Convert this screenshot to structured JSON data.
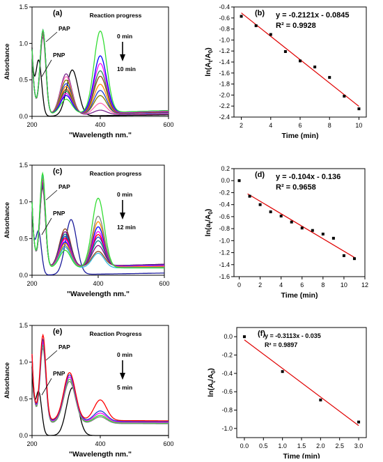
{
  "chart_data": [
    {
      "id": "a",
      "panel_label": "(a)",
      "type": "line",
      "xlabel": "\"Wavelength nm.\"",
      "ylabel": "Absorbance",
      "xlim": [
        200,
        600
      ],
      "ylim": [
        0,
        1.5
      ],
      "xticks": [
        200,
        400,
        600
      ],
      "yticks": [
        0.0,
        0.5,
        1.0,
        1.5
      ],
      "ytick_labels": [
        "0.0",
        "0.5",
        "1.0",
        "1.5"
      ],
      "annotations": {
        "pap": "PAP",
        "pnp": "PNP",
        "progress": "Reaction progress",
        "t_start": "0 min",
        "t_end": "10 min"
      },
      "series": [
        {
          "color": "#000000",
          "peaks": [
            [
              220,
              0.72
            ],
            [
              318,
              0.63
            ]
          ],
          "baseline": 0.0,
          "tail": 0.02
        },
        {
          "color": "#7b2b8f",
          "peaks": [
            [
              232,
              1.08
            ],
            [
              300,
              0.58
            ],
            [
              400,
              0.08
            ]
          ],
          "baseline": 0.02,
          "tail": 0.03
        },
        {
          "color": "#ff69b4",
          "peaks": [
            [
              232,
              1.1
            ],
            [
              300,
              0.54
            ],
            [
              400,
              0.17
            ]
          ],
          "baseline": 0.02,
          "tail": 0.04
        },
        {
          "color": "#808000",
          "peaks": [
            [
              232,
              1.12
            ],
            [
              300,
              0.49
            ],
            [
              400,
              0.27
            ]
          ],
          "baseline": 0.02,
          "tail": 0.05
        },
        {
          "color": "#1f3fd0",
          "peaks": [
            [
              232,
              1.13
            ],
            [
              300,
              0.44
            ],
            [
              400,
              0.34
            ]
          ],
          "baseline": 0.02,
          "tail": 0.05
        },
        {
          "color": "#ff8c00",
          "peaks": [
            [
              232,
              1.14
            ],
            [
              300,
              0.4
            ],
            [
              400,
              0.42
            ]
          ],
          "baseline": 0.02,
          "tail": 0.06
        },
        {
          "color": "#8b4513",
          "peaks": [
            [
              232,
              1.15
            ],
            [
              300,
              0.36
            ],
            [
              400,
              0.53
            ]
          ],
          "baseline": 0.02,
          "tail": 0.06
        },
        {
          "color": "#2e8b57",
          "peaks": [
            [
              232,
              1.16
            ],
            [
              300,
              0.33
            ],
            [
              400,
              0.6
            ]
          ],
          "baseline": 0.02,
          "tail": 0.07
        },
        {
          "color": "#ff00ff",
          "peaks": [
            [
              232,
              1.16
            ],
            [
              300,
              0.3
            ],
            [
              400,
              0.7
            ]
          ],
          "baseline": 0.02,
          "tail": 0.07
        },
        {
          "color": "#0000ff",
          "peaks": [
            [
              232,
              1.17
            ],
            [
              300,
              0.27
            ],
            [
              400,
              0.8
            ]
          ],
          "baseline": 0.02,
          "tail": 0.08
        },
        {
          "color": "#33dd33",
          "peaks": [
            [
              232,
              1.17
            ],
            [
              300,
              0.22
            ],
            [
              400,
              1.14
            ]
          ],
          "baseline": 0.02,
          "tail": 0.08
        }
      ]
    },
    {
      "id": "b",
      "panel_label": "(b)",
      "type": "scatter",
      "xlabel": "Time (min)",
      "ylabel": "ln(At/A0)",
      "ylabel_parts": {
        "pre": "ln(A",
        "s1": "t",
        "mid": "/A",
        "s2": "0",
        "post": ")"
      },
      "xlim": [
        1.5,
        10.5
      ],
      "ylim": [
        -2.4,
        -0.4
      ],
      "xticks": [
        2,
        4,
        6,
        8,
        10
      ],
      "yticks": [
        -2.4,
        -2.2,
        -2.0,
        -1.8,
        -1.6,
        -1.4,
        -1.2,
        -1.0,
        -0.8,
        -0.6,
        -0.4
      ],
      "ytick_labels": [
        "-2.4",
        "-2.2",
        "-2.0",
        "-1.8",
        "-1.6",
        "-1.4",
        "-1.2",
        "-1.0",
        "-0.8",
        "-0.6",
        "-0.4"
      ],
      "points": [
        [
          2,
          -0.57
        ],
        [
          3,
          -0.74
        ],
        [
          4,
          -0.9
        ],
        [
          5,
          -1.21
        ],
        [
          6,
          -1.38
        ],
        [
          7,
          -1.49
        ],
        [
          8,
          -1.68
        ],
        [
          9,
          -2.02
        ],
        [
          10,
          -2.25
        ]
      ],
      "fit": {
        "slope": -0.2121,
        "intercept": -0.0845,
        "x_range": [
          2,
          10
        ],
        "color": "#e00000"
      },
      "equation": "y = -0.2121x - 0.0845",
      "r2": "R² = 0.9928"
    },
    {
      "id": "c",
      "panel_label": "(c)",
      "type": "line",
      "xlabel": "\"Wavelength nm.\"",
      "ylabel": "Absorbance",
      "xlim": [
        200,
        600
      ],
      "ylim": [
        0,
        1.5
      ],
      "xticks": [
        200,
        400,
        600
      ],
      "yticks": [
        0.0,
        0.5,
        1.0,
        1.5
      ],
      "ytick_labels": [
        "0.0",
        "0.5",
        "1.0",
        "1.5"
      ],
      "annotations": {
        "pap": "PAP",
        "pnp": "PNP",
        "progress": "Reaction progress",
        "t_start": "0 min",
        "t_end": "12 min"
      },
      "series": [
        {
          "color": "#1a1a9a",
          "peaks": [
            [
              220,
              0.55
            ],
            [
              318,
              0.75
            ]
          ],
          "baseline": 0.0,
          "tail": 0.03
        },
        {
          "color": "#8b4513",
          "peaks": [
            [
              232,
              1.18
            ],
            [
              300,
              0.62
            ],
            [
              400,
              0.3
            ]
          ],
          "baseline": 0.1,
          "tail": 0.15
        },
        {
          "color": "#800080",
          "peaks": [
            [
              232,
              1.2
            ],
            [
              300,
              0.58
            ],
            [
              400,
              0.38
            ]
          ],
          "baseline": 0.1,
          "tail": 0.15
        },
        {
          "color": "#008080",
          "peaks": [
            [
              232,
              1.22
            ],
            [
              300,
              0.55
            ],
            [
              400,
              0.45
            ]
          ],
          "baseline": 0.1,
          "tail": 0.14
        },
        {
          "color": "#1f3fd0",
          "peaks": [
            [
              232,
              1.24
            ],
            [
              300,
              0.52
            ],
            [
              400,
              0.5
            ]
          ],
          "baseline": 0.1,
          "tail": 0.14
        },
        {
          "color": "#ff0000",
          "peaks": [
            [
              232,
              1.26
            ],
            [
              300,
              0.5
            ],
            [
              400,
              0.54
            ]
          ],
          "baseline": 0.1,
          "tail": 0.13
        },
        {
          "color": "#ff00ff",
          "peaks": [
            [
              232,
              1.28
            ],
            [
              300,
              0.48
            ],
            [
              400,
              0.58
            ]
          ],
          "baseline": 0.1,
          "tail": 0.13
        },
        {
          "color": "#0000ff",
          "peaks": [
            [
              232,
              1.3
            ],
            [
              300,
              0.45
            ],
            [
              400,
              0.65
            ]
          ],
          "baseline": 0.1,
          "tail": 0.12
        },
        {
          "color": "#ff8c00",
          "peaks": [
            [
              232,
              1.31
            ],
            [
              300,
              0.43
            ],
            [
              400,
              0.72
            ]
          ],
          "baseline": 0.1,
          "tail": 0.12
        },
        {
          "color": "#808080",
          "peaks": [
            [
              232,
              1.33
            ],
            [
              300,
              0.4
            ],
            [
              400,
              0.8
            ]
          ],
          "baseline": 0.1,
          "tail": 0.11
        },
        {
          "color": "#33bbdd",
          "peaks": [
            [
              232,
              1.36
            ],
            [
              300,
              0.38
            ],
            [
              400,
              0.3
            ]
          ],
          "baseline": 0.1,
          "tail": 0.1
        },
        {
          "color": "#33dd33",
          "peaks": [
            [
              232,
              1.38
            ],
            [
              300,
              0.34
            ],
            [
              400,
              1.05
            ]
          ],
          "baseline": 0.1,
          "tail": 0.1
        }
      ]
    },
    {
      "id": "d",
      "panel_label": "(d)",
      "type": "scatter",
      "xlabel": "Time (min)",
      "ylabel": "ln(at/A0)",
      "ylabel_parts": {
        "pre": "ln(a",
        "s1": "t",
        "mid": "/A",
        "s2": "0",
        "post": ")"
      },
      "xlim": [
        -0.5,
        12
      ],
      "ylim": [
        -1.6,
        0.2
      ],
      "xticks": [
        0,
        2,
        4,
        6,
        8,
        10,
        12
      ],
      "yticks": [
        -1.6,
        -1.4,
        -1.2,
        -1.0,
        -0.8,
        -0.6,
        -0.4,
        -0.2,
        0.0,
        0.2
      ],
      "ytick_labels": [
        "-1.6",
        "-1.4",
        "-1.2",
        "-1.0",
        "-0.8",
        "-0.6",
        "-0.4",
        "-0.2",
        "0.0",
        "0.2"
      ],
      "points": [
        [
          0,
          0.0
        ],
        [
          1,
          -0.26
        ],
        [
          2,
          -0.4
        ],
        [
          3,
          -0.52
        ],
        [
          4,
          -0.59
        ],
        [
          5,
          -0.69
        ],
        [
          6,
          -0.79
        ],
        [
          7,
          -0.83
        ],
        [
          8,
          -0.89
        ],
        [
          9,
          -0.96
        ],
        [
          10,
          -1.25
        ],
        [
          11,
          -1.3
        ]
      ],
      "fit": {
        "slope": -0.104,
        "intercept": -0.136,
        "x_range": [
          0.8,
          11
        ],
        "color": "#e00000"
      },
      "equation": "y = -0.104x - 0.136",
      "r2": "R² = 0.9658"
    },
    {
      "id": "e",
      "panel_label": "(e)",
      "type": "line",
      "xlabel": "\"Wavelength nm.\"",
      "ylabel": "Absorbance",
      "xlim": [
        200,
        600
      ],
      "ylim": [
        0,
        1.5
      ],
      "xticks": [
        200,
        400,
        600
      ],
      "yticks": [
        0.0,
        0.5,
        1.0,
        1.5
      ],
      "ytick_labels": [
        "0.0",
        "0.5",
        "1.0",
        "1.5"
      ],
      "annotations": {
        "pap": "PAP",
        "pnp": "PNP",
        "progress": "Reaction Progress",
        "t_start": "0 min",
        "t_end": "5 min"
      },
      "series": [
        {
          "color": "#000000",
          "peaks": [
            [
              220,
              0.55
            ],
            [
              318,
              0.65
            ]
          ],
          "baseline": 0.0,
          "tail": 0.0
        },
        {
          "color": "#808080",
          "peaks": [
            [
              232,
              1.18
            ],
            [
              310,
              0.74
            ],
            [
              400,
              0.26
            ]
          ],
          "baseline": 0.17,
          "tail": 0.16
        },
        {
          "color": "#33dd33",
          "peaks": [
            [
              232,
              1.22
            ],
            [
              310,
              0.77
            ],
            [
              400,
              0.28
            ]
          ],
          "baseline": 0.18,
          "tail": 0.17
        },
        {
          "color": "#ff00ff",
          "peaks": [
            [
              232,
              1.26
            ],
            [
              310,
              0.8
            ],
            [
              400,
              0.31
            ]
          ],
          "baseline": 0.19,
          "tail": 0.18
        },
        {
          "color": "#1f3fd0",
          "peaks": [
            [
              232,
              1.3
            ],
            [
              310,
              0.83
            ],
            [
              400,
              0.34
            ]
          ],
          "baseline": 0.2,
          "tail": 0.19
        },
        {
          "color": "#ff0000",
          "peaks": [
            [
              232,
              1.36
            ],
            [
              310,
              0.86
            ],
            [
              400,
              0.49
            ]
          ],
          "baseline": 0.21,
          "tail": 0.2
        }
      ]
    },
    {
      "id": "f",
      "panel_label": "(f)",
      "type": "scatter",
      "xlabel": "Time (min)",
      "ylabel": "ln(At/A0)",
      "ylabel_parts": {
        "pre": "ln(A",
        "s1": "t",
        "mid": "/A",
        "s2": "0",
        "post": ")"
      },
      "xlim": [
        -0.2,
        3.2
      ],
      "ylim": [
        -1.1,
        0.1
      ],
      "xticks": [
        0.0,
        0.5,
        1.0,
        1.5,
        2.0,
        2.5,
        3.0
      ],
      "xtick_labels": [
        "0.0",
        "0.5",
        "1.0",
        "1.5",
        "2.0",
        "2.5",
        "3.0"
      ],
      "yticks": [
        -1.0,
        -0.8,
        -0.6,
        -0.4,
        -0.2,
        0.0
      ],
      "ytick_labels": [
        "-1.0",
        "-0.8",
        "-0.6",
        "-0.4",
        "-0.2",
        "0.0"
      ],
      "points": [
        [
          0,
          0.0
        ],
        [
          1,
          -0.38
        ],
        [
          2,
          -0.69
        ],
        [
          3,
          -0.93
        ]
      ],
      "fit": {
        "slope": -0.3113,
        "intercept": -0.035,
        "x_range": [
          0,
          3.0
        ],
        "color": "#e00000"
      },
      "equation": "y = -0.3113x - 0.035",
      "r2": "R² = 0.9897"
    }
  ]
}
